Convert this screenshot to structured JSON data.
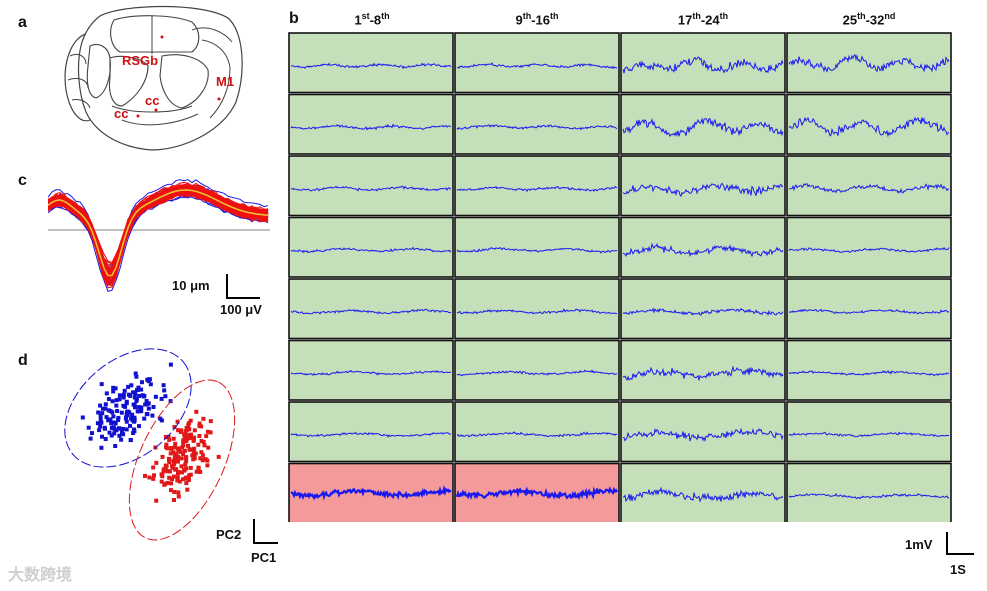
{
  "panels": {
    "a": {
      "letter": "a",
      "labels": {
        "rsgb": "RSGb",
        "m1": "M1",
        "cc1": "cc",
        "cc2": "cc"
      }
    },
    "b": {
      "letter": "b",
      "columns": [
        {
          "base": "1",
          "sup": "st",
          "dash": "-",
          "end": "8",
          "end_sup": "th"
        },
        {
          "base": "9",
          "sup": "th",
          "dash": "-",
          "end": "16",
          "end_sup": "th"
        },
        {
          "base": "17",
          "sup": "th",
          "dash": "-",
          "end": "24",
          "end_sup": "th"
        },
        {
          "base": "25",
          "sup": "th",
          "dash": "-",
          "end": "32",
          "end_sup": "nd"
        }
      ],
      "rows": 8,
      "colors": {
        "good": "#c6dfbb",
        "bad": "#f49a9a",
        "trace": "#1a1af0"
      },
      "channel_quality": [
        [
          "good",
          "good",
          "good",
          "good"
        ],
        [
          "good",
          "good",
          "good",
          "good"
        ],
        [
          "good",
          "good",
          "good",
          "good"
        ],
        [
          "good",
          "good",
          "good",
          "good"
        ],
        [
          "good",
          "good",
          "good",
          "good"
        ],
        [
          "good",
          "good",
          "good",
          "good"
        ],
        [
          "good",
          "good",
          "good",
          "good"
        ],
        [
          "bad",
          "bad",
          "good",
          "good"
        ]
      ],
      "scalebar": {
        "voltage": "1mV",
        "time": "1S"
      }
    },
    "c": {
      "letter": "c",
      "scalebar": {
        "vertical": "10 μm",
        "horizontal": "100 μV"
      }
    },
    "d": {
      "letter": "d",
      "axes": {
        "y": "PC2",
        "x": "PC1"
      },
      "colors": {
        "cluster1": "#1010d0",
        "cluster2": "#e01818"
      }
    }
  },
  "watermark": "大数跨境"
}
